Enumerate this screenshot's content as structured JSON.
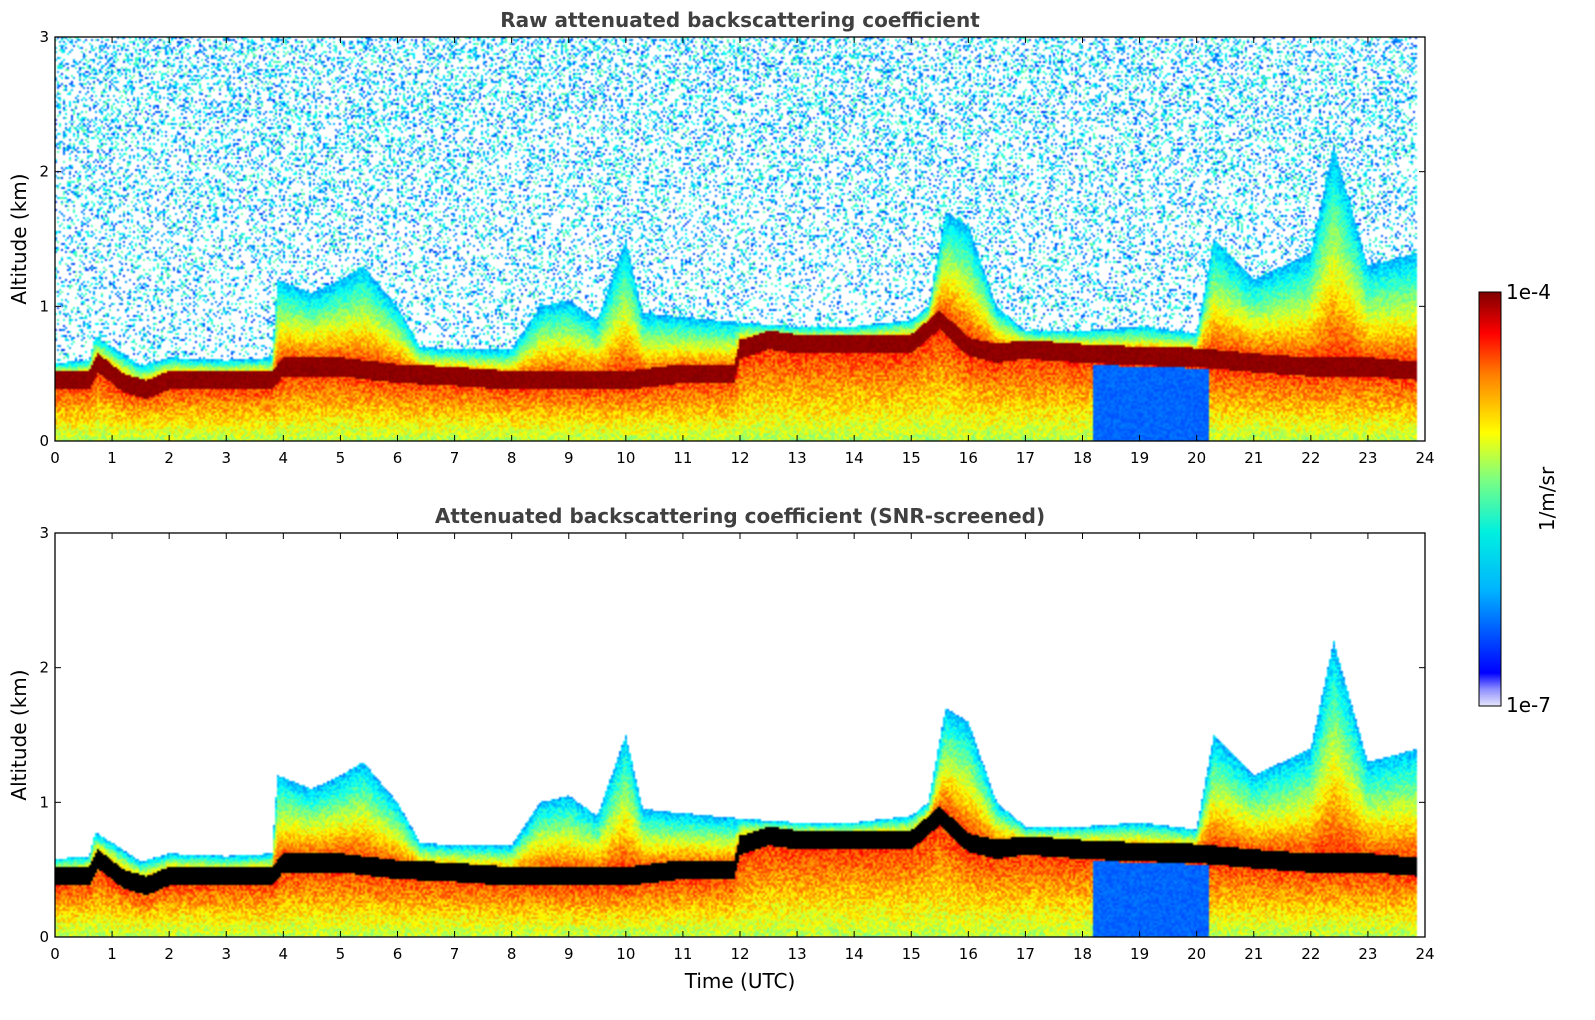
{
  "chart_data": [
    {
      "type": "heatmap",
      "title": "Raw attenuated backscattering coefficient",
      "xlabel": "",
      "ylabel": "Altitude (km)",
      "xlim": [
        0,
        24
      ],
      "ylim": [
        0,
        3
      ],
      "x_ticks": [
        "0",
        "1",
        "2",
        "3",
        "4",
        "5",
        "6",
        "7",
        "8",
        "9",
        "10",
        "11",
        "12",
        "13",
        "14",
        "15",
        "16",
        "17",
        "18",
        "19",
        "20",
        "21",
        "22",
        "23",
        "24"
      ],
      "y_ticks": [
        "0",
        "1",
        "2",
        "3"
      ],
      "screening": "raw",
      "layer_top_km": [
        [
          0,
          0.58
        ],
        [
          0.6,
          0.6
        ],
        [
          0.7,
          0.78
        ],
        [
          1.0,
          0.7
        ],
        [
          1.5,
          0.56
        ],
        [
          2.0,
          0.62
        ],
        [
          3.0,
          0.6
        ],
        [
          3.8,
          0.62
        ],
        [
          3.9,
          1.2
        ],
        [
          4.5,
          1.1
        ],
        [
          5.0,
          1.2
        ],
        [
          5.4,
          1.3
        ],
        [
          6.0,
          1.0
        ],
        [
          6.4,
          0.7
        ],
        [
          7.0,
          0.68
        ],
        [
          8.0,
          0.68
        ],
        [
          8.5,
          1.0
        ],
        [
          9.0,
          1.05
        ],
        [
          9.5,
          0.9
        ],
        [
          10.0,
          1.5
        ],
        [
          10.3,
          0.95
        ],
        [
          11.0,
          0.92
        ],
        [
          12.0,
          0.88
        ],
        [
          13.0,
          0.85
        ],
        [
          14.0,
          0.85
        ],
        [
          15.0,
          0.9
        ],
        [
          15.3,
          1.0
        ],
        [
          15.6,
          1.7
        ],
        [
          16.0,
          1.6
        ],
        [
          16.5,
          1.0
        ],
        [
          17.0,
          0.82
        ],
        [
          18.0,
          0.82
        ],
        [
          19.0,
          0.85
        ],
        [
          20.0,
          0.8
        ],
        [
          20.3,
          1.5
        ],
        [
          21.0,
          1.2
        ],
        [
          22.0,
          1.4
        ],
        [
          22.4,
          2.2
        ],
        [
          23.0,
          1.3
        ],
        [
          23.9,
          1.4
        ]
      ],
      "layer_center_km": [
        [
          0,
          0.45
        ],
        [
          0.6,
          0.45
        ],
        [
          0.75,
          0.58
        ],
        [
          1.2,
          0.43
        ],
        [
          1.6,
          0.38
        ],
        [
          2.0,
          0.45
        ],
        [
          3.0,
          0.45
        ],
        [
          3.8,
          0.45
        ],
        [
          4.0,
          0.55
        ],
        [
          5.0,
          0.55
        ],
        [
          6.0,
          0.5
        ],
        [
          7.0,
          0.48
        ],
        [
          8.0,
          0.45
        ],
        [
          9.0,
          0.45
        ],
        [
          10.0,
          0.45
        ],
        [
          11.0,
          0.5
        ],
        [
          11.9,
          0.5
        ],
        [
          12.0,
          0.68
        ],
        [
          12.5,
          0.75
        ],
        [
          13.0,
          0.72
        ],
        [
          14.0,
          0.72
        ],
        [
          15.0,
          0.72
        ],
        [
          15.5,
          0.9
        ],
        [
          16.0,
          0.7
        ],
        [
          16.5,
          0.65
        ],
        [
          17.0,
          0.68
        ],
        [
          18.0,
          0.65
        ],
        [
          19.0,
          0.63
        ],
        [
          20.0,
          0.62
        ],
        [
          21.0,
          0.58
        ],
        [
          22.0,
          0.55
        ],
        [
          23.0,
          0.55
        ],
        [
          23.9,
          0.52
        ]
      ],
      "colorbar": {
        "min_label": "1e-7",
        "max_label": "1e-4",
        "label": "1/m/sr",
        "scale": "log",
        "colormap": "jet"
      }
    },
    {
      "type": "heatmap",
      "title": "Attenuated backscattering coefficient (SNR-screened)",
      "xlabel": "Time (UTC)",
      "ylabel": "Altitude (km)",
      "xlim": [
        0,
        24
      ],
      "ylim": [
        0,
        3
      ],
      "x_ticks": [
        "0",
        "1",
        "2",
        "3",
        "4",
        "5",
        "6",
        "7",
        "8",
        "9",
        "10",
        "11",
        "12",
        "13",
        "14",
        "15",
        "16",
        "17",
        "18",
        "19",
        "20",
        "21",
        "22",
        "23",
        "24"
      ],
      "y_ticks": [
        "0",
        "1",
        "2",
        "3"
      ],
      "screening": "snr",
      "saturated_color": "#000000"
    }
  ]
}
